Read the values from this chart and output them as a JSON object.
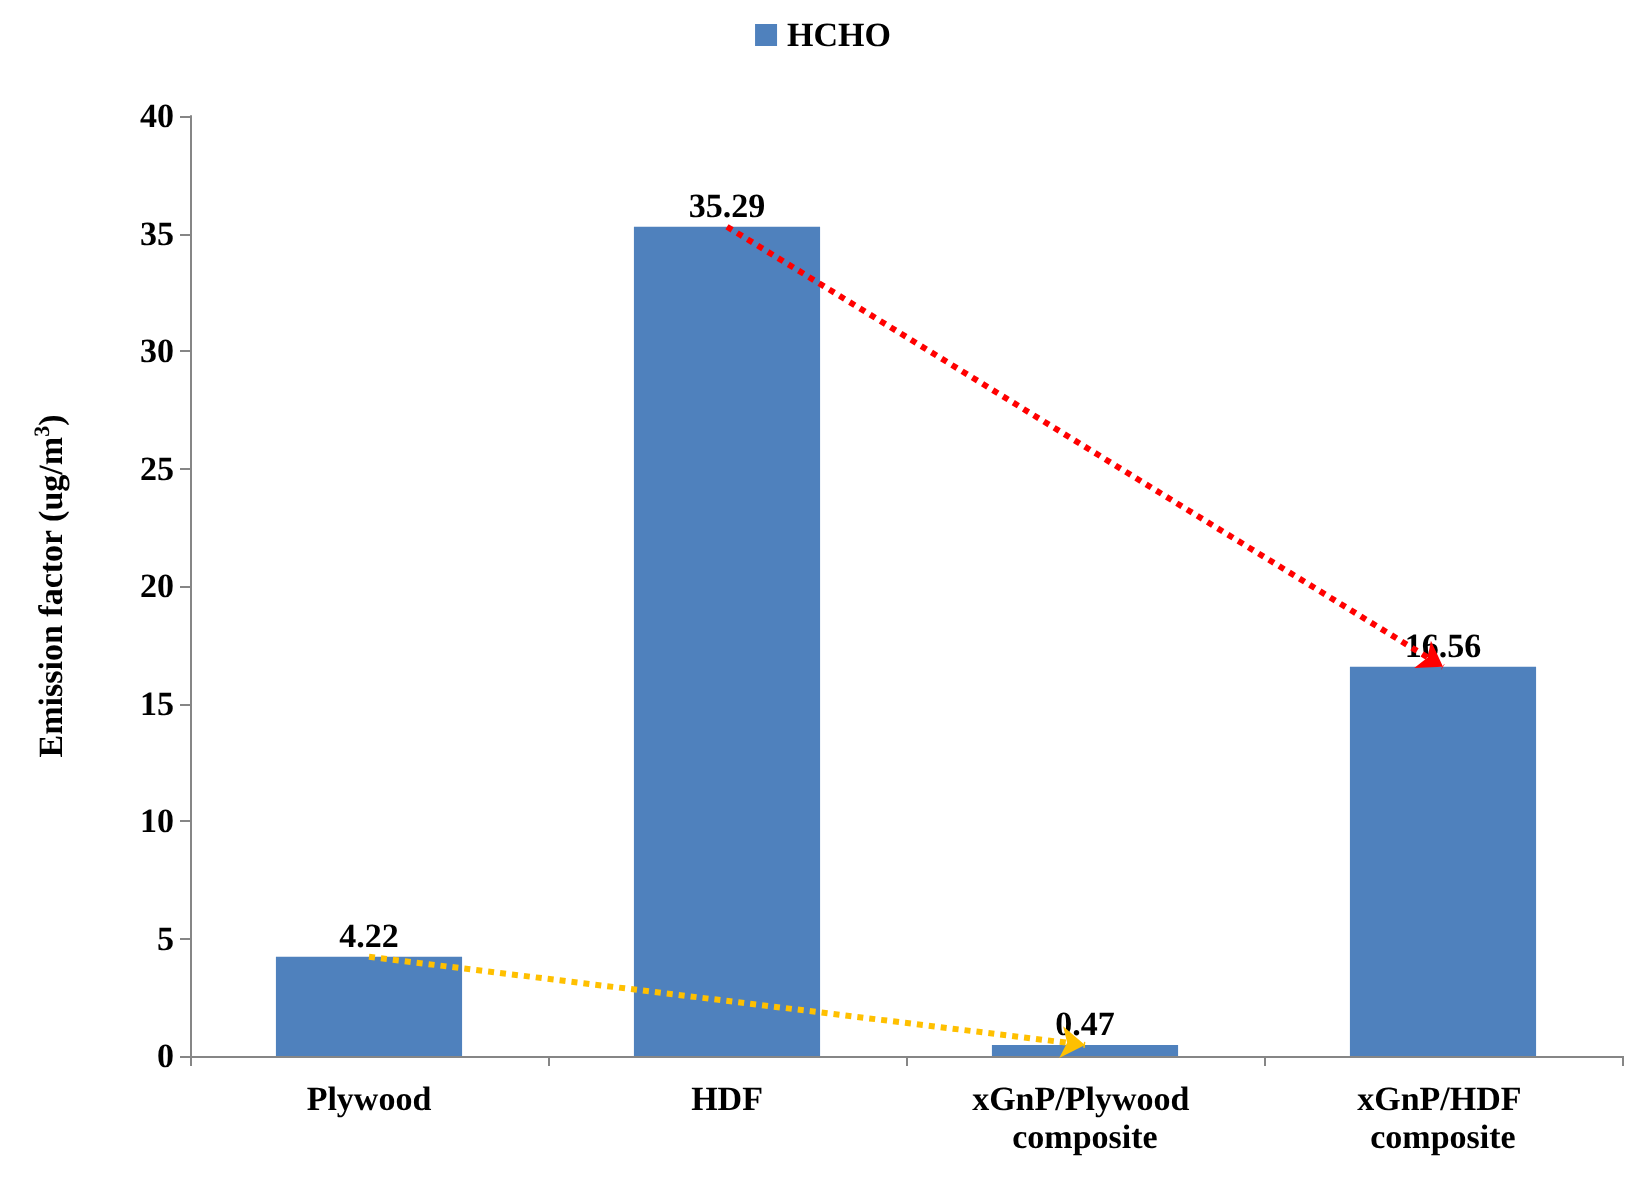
{
  "chart_data": {
    "type": "bar",
    "ylabel": "Emission factor (ug/m$^{3}$)",
    "categories": [
      "Plywood",
      "HDF",
      "xGnP/Plywood composite",
      "xGnP/HDF composite"
    ],
    "series": [
      {
        "name": "HCHO",
        "color": "#4f81bd",
        "values": [
          4.22,
          35.29,
          0.47,
          16.56
        ]
      }
    ],
    "ylim": [
      0,
      40
    ],
    "yticks": [
      0,
      5,
      10,
      15,
      20,
      25,
      30,
      35,
      40
    ],
    "grid": false,
    "legend": "top",
    "data_labels": true
  }
}
